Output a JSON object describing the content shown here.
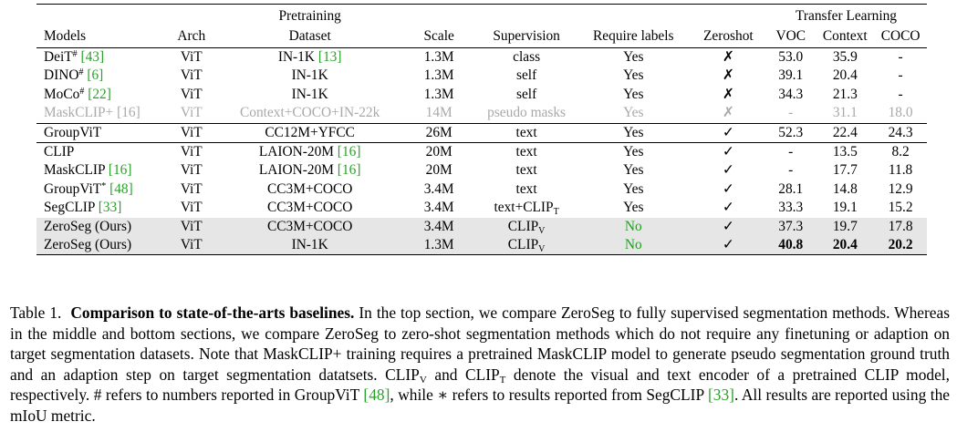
{
  "table": {
    "group_headers": {
      "pretraining": "Pretraining",
      "transfer": "Transfer Learning"
    },
    "columns": {
      "models": "Models",
      "arch": "Arch",
      "dataset": "Dataset",
      "scale": "Scale",
      "supervision": "Supervision",
      "require_labels": "Require labels",
      "zeroshot": "Zeroshot",
      "voc": "VOC",
      "context": "Context",
      "coco": "COCO"
    },
    "rows": [
      {
        "model": "DeiT",
        "model_sup": "#",
        "model_cite": "[43]",
        "arch": "ViT",
        "dataset": "IN-1K ",
        "dataset_cite": "[13]",
        "scale": "1.3M",
        "supervision": "class",
        "supervision_sub": "",
        "labels": "Yes",
        "zeroshot": "✗",
        "voc": "53.0",
        "context": "35.9",
        "coco": "-"
      },
      {
        "model": "DINO",
        "model_sup": "#",
        "model_cite": "[6]",
        "arch": "ViT",
        "dataset": "IN-1K",
        "dataset_cite": "",
        "scale": "1.3M",
        "supervision": "self",
        "supervision_sub": "",
        "labels": "Yes",
        "zeroshot": "✗",
        "voc": "39.1",
        "context": "20.4",
        "coco": "-"
      },
      {
        "model": "MoCo",
        "model_sup": "#",
        "model_cite": "[22]",
        "arch": "ViT",
        "dataset": "IN-1K",
        "dataset_cite": "",
        "scale": "1.3M",
        "supervision": "self",
        "supervision_sub": "",
        "labels": "Yes",
        "zeroshot": "✗",
        "voc": "34.3",
        "context": "21.3",
        "coco": "-"
      },
      {
        "model": "MaskCLIP+",
        "model_sup": "",
        "model_cite": "[16]",
        "arch": "ViT",
        "dataset": "Context+COCO+IN-22k",
        "dataset_cite": "",
        "scale": "14M",
        "supervision": "pseudo masks",
        "supervision_sub": "",
        "labels": "Yes",
        "zeroshot": "✗",
        "voc": "-",
        "context": "31.1",
        "coco": "18.0"
      },
      {
        "model": "GroupViT",
        "model_sup": "",
        "model_cite": "",
        "arch": "ViT",
        "dataset": "CC12M+YFCC",
        "dataset_cite": "",
        "scale": "26M",
        "supervision": "text",
        "supervision_sub": "",
        "labels": "Yes",
        "zeroshot": "✓",
        "voc": "52.3",
        "context": "22.4",
        "coco": "24.3"
      },
      {
        "model": "CLIP",
        "model_sup": "",
        "model_cite": "",
        "arch": "ViT",
        "dataset": "LAION-20M ",
        "dataset_cite": "[16]",
        "scale": "20M",
        "supervision": "text",
        "supervision_sub": "",
        "labels": "Yes",
        "zeroshot": "✓",
        "voc": "-",
        "context": "13.5",
        "coco": "8.2"
      },
      {
        "model": "MaskCLIP",
        "model_sup": "",
        "model_cite": "[16]",
        "arch": "ViT",
        "dataset": "LAION-20M ",
        "dataset_cite": "[16]",
        "scale": "20M",
        "supervision": "text",
        "supervision_sub": "",
        "labels": "Yes",
        "zeroshot": "✓",
        "voc": "-",
        "context": "17.7",
        "coco": "11.8"
      },
      {
        "model": "GroupViT",
        "model_sup": "*",
        "model_cite": "[48]",
        "arch": "ViT",
        "dataset": "CC3M+COCO",
        "dataset_cite": "",
        "scale": "3.4M",
        "supervision": "text",
        "supervision_sub": "",
        "labels": "Yes",
        "zeroshot": "✓",
        "voc": "28.1",
        "context": "14.8",
        "coco": "12.9"
      },
      {
        "model": "SegCLIP",
        "model_sup": "",
        "model_cite": "[33]",
        "arch": "ViT",
        "dataset": "CC3M+COCO",
        "dataset_cite": "",
        "scale": "3.4M",
        "supervision": "text+CLIP",
        "supervision_sub": "T",
        "labels": "Yes",
        "zeroshot": "✓",
        "voc": "33.3",
        "context": "19.1",
        "coco": "15.2"
      },
      {
        "model": "ZeroSeg (Ours)",
        "model_sup": "",
        "model_cite": "",
        "arch": "ViT",
        "dataset": "CC3M+COCO",
        "dataset_cite": "",
        "scale": "3.4M",
        "supervision": "CLIP",
        "supervision_sub": "V",
        "labels": "No",
        "zeroshot": "✓",
        "voc": "37.3",
        "context": "19.7",
        "coco": "17.8"
      },
      {
        "model": "ZeroSeg (Ours)",
        "model_sup": "",
        "model_cite": "",
        "arch": "ViT",
        "dataset": "IN-1K",
        "dataset_cite": "",
        "scale": "1.3M",
        "supervision": "CLIP",
        "supervision_sub": "V",
        "labels": "No",
        "zeroshot": "✓",
        "voc": "40.8",
        "context": "20.4",
        "coco": "20.2"
      }
    ]
  },
  "caption": {
    "label": "Table 1.",
    "title": "Comparison to state-of-the-arts baselines.",
    "t1": "In the top section, we compare ZeroSeg to fully supervised segmentation methods. Whereas in the middle and bottom sections, we compare ZeroSeg to zero-shot segmentation methods which do not require any finetuning or adaption on target segmentation datasets. Note that MaskCLIP+ training requires a pretrained MaskCLIP model to generate pseudo segmentation ground truth and an adaption step on target segmentation datatsets. CLIP",
    "sub_v": "V",
    "t2": "and CLIP",
    "sub_t": "T",
    "t3": "denote the visual and text encoder of a pretrained CLIP model, respectively. # refers to numbers reported in GroupViT",
    "cite1": "[48]",
    "t4": ", while ∗ refers to results reported from SegCLIP",
    "cite2": "[33]",
    "t5": ". All results are reported using the mIoU metric."
  }
}
